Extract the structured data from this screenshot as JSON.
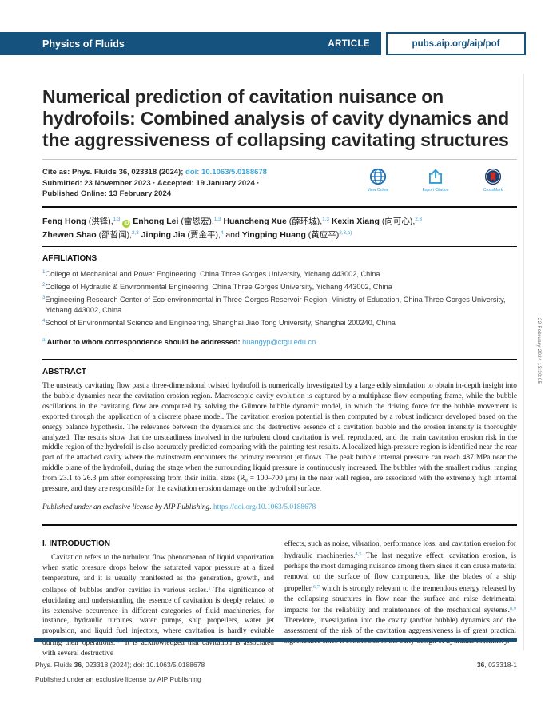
{
  "header": {
    "journal": "Physics of Fluids",
    "article_badge": "ARTICLE",
    "url": "pubs.aip.org/aip/pof"
  },
  "title": "Numerical prediction of cavitation nuisance on hydrofoils: Combined analysis of cavity dynamics and the aggressiveness of collapsing cavitating structures",
  "citation": {
    "line1": [
      {
        "t": "Cite as: Phys. Fluids "
      },
      {
        "t": "36",
        "c": "b"
      },
      {
        "t": ", 023318 (2024); "
      },
      {
        "t": "doi: 10.1063/5.0188678",
        "c": "link",
        "n": "doi-link",
        "i": true
      }
    ],
    "line2": "Submitted: 23 November 2023 · Accepted: 19 January 2024 ·",
    "line3": "Published Online: 13 February 2024"
  },
  "actions": {
    "view_online": "View Online",
    "export_citation": "Export Citation",
    "crossmark": "CrossMark"
  },
  "authors": {
    "line1": [
      {
        "t": "Feng Hong ",
        "c": "an"
      },
      {
        "t": "(洪锋),",
        "c": "cn"
      },
      {
        "t": "1,3",
        "c": "sup"
      },
      {
        "t": " ",
        "c": "cn"
      },
      {
        "t": "iD",
        "c": "orcid",
        "n": "orcid-icon",
        "i": true
      },
      {
        "t": " ",
        "c": "cn"
      },
      {
        "t": "Enhong Lei ",
        "c": "an"
      },
      {
        "t": "(雷恩宏),",
        "c": "cn"
      },
      {
        "t": "1,3",
        "c": "sup"
      },
      {
        "t": " ",
        "c": "cn"
      },
      {
        "t": "Huancheng Xue ",
        "c": "an"
      },
      {
        "t": "(薛环城),",
        "c": "cn"
      },
      {
        "t": "1,3",
        "c": "sup"
      },
      {
        "t": " ",
        "c": "cn"
      },
      {
        "t": "Kexin Xiang ",
        "c": "an"
      },
      {
        "t": "(向可心),",
        "c": "cn"
      },
      {
        "t": "2,3",
        "c": "sup"
      }
    ],
    "line2": [
      {
        "t": "Zhewen Shao ",
        "c": "an"
      },
      {
        "t": "(邵哲闻),",
        "c": "cn"
      },
      {
        "t": "2,3",
        "c": "sup"
      },
      {
        "t": " ",
        "c": "cn"
      },
      {
        "t": "Jinping Jia ",
        "c": "an"
      },
      {
        "t": "(贾金平),",
        "c": "cn"
      },
      {
        "t": "4",
        "c": "sup"
      },
      {
        "t": " and ",
        "c": "cn"
      },
      {
        "t": "Yingping Huang ",
        "c": "an"
      },
      {
        "t": "(黄应平)",
        "c": "cn"
      },
      {
        "t": "2,3,a)",
        "c": "sup"
      }
    ]
  },
  "affiliations": {
    "heading": "AFFILIATIONS",
    "items": [
      [
        {
          "t": "1",
          "c": "sup"
        },
        {
          "t": "College of Mechanical and Power Engineering, China Three Gorges University, Yichang 443002, China"
        }
      ],
      [
        {
          "t": "2",
          "c": "sup"
        },
        {
          "t": "College of Hydraulic & Environmental Engineering, China Three Gorges University, Yichang 443002, China"
        }
      ],
      [
        {
          "t": "3",
          "c": "sup"
        },
        {
          "t": "Engineering Research Center of Eco-environmental in Three Gorges Reservoir Region, Ministry of Education, China Three Gorges University, Yichang 443002, China"
        }
      ],
      [
        {
          "t": "4",
          "c": "sup"
        },
        {
          "t": "School of Environmental Science and Engineering, Shanghai Jiao Tong University, Shanghai 200240, China"
        }
      ]
    ],
    "correspondence": [
      {
        "t": "a)",
        "c": "sup"
      },
      {
        "t": "Author to whom correspondence should be addressed: ",
        "c": "b"
      },
      {
        "t": "huangyp@ctgu.edu.cn",
        "c": "link",
        "n": "correspondence-email-link",
        "i": true
      }
    ]
  },
  "abstract": {
    "heading": "ABSTRACT",
    "body": "The unsteady cavitating flow past a three-dimensional twisted hydrofoil is numerically investigated by a large eddy simulation to obtain in-depth insight into the bubble dynamics near the cavitation erosion region. Macroscopic cavity evolution is captured by a multiphase flow computing frame, while the bubble oscillations in the cavitating flow are computed by solving the Gilmore bubble dynamic model, in which the driving force for the bubble movement is exported through the application of a discrete phase model. The cavitation erosion potential is then computed by a robust indicator developed based on the energy balance hypothesis. The relevance between the dynamics and the destructive essence of a cavitation bubble and the erosion intensity is thoroughly analyzed. The results show that the unsteadiness involved in the turbulent cloud cavitation is well reproduced, and the main cavitation erosion risk in the middle region of the hydrofoil is also accurately predicted comparing with the painting test results. A localized high-pressure region is identified near the rear part of the attached cavity where the mainstream encounters the primary reentrant jet flows. The peak bubble internal pressure can reach 487 MPa near the middle plane of the hydrofoil, during the stage when the surrounding liquid pressure is continuously increased. The bubbles with the smallest radius, ranging from 23.1 to 26.3 μm after compressing from their initial sizes (R₀ = 100–700 μm) in the near wall region, are associated with the extremely high internal pressure, and they are responsible for the cavitation erosion damage on the hydrofoil surface.",
    "license": [
      {
        "t": "Published under an exclusive license by AIP Publishing. ",
        "c": "i"
      },
      {
        "t": "https://doi.org/10.1063/5.0188678",
        "c": "link",
        "n": "license-doi-link",
        "i": true
      }
    ]
  },
  "introduction": {
    "heading": "I. INTRODUCTION",
    "col_left": [
      {
        "t": "Cavitation refers to the turbulent flow phenomenon of liquid vaporization when static pressure drops below the saturated vapor pressure at a fixed temperature, and it is usually manifested as the generation, growth, and collapse of bubbles and/or cavities in various scales."
      },
      {
        "t": "1",
        "c": "supref"
      },
      {
        "t": " The significance of elucidating and understanding the essence of cavitation is deeply related to its extensive occurrence in different categories of fluid machineries, for instance, hydraulic turbines, water pumps, ship propellers, water jet propulsion, and liquid fuel injectors, where cavitation is hardly evitable during their operations."
      },
      {
        "t": "2,3",
        "c": "supref"
      },
      {
        "t": " It is acknowledged that cavitation is associated with several destructive"
      }
    ],
    "col_right": [
      {
        "t": "effects, such as noise, vibration, performance loss, and cavitation erosion for hydraulic machineries."
      },
      {
        "t": "4,5",
        "c": "supref"
      },
      {
        "t": " The last negative effect, cavitation erosion, is perhaps the most damaging nuisance among them since it can cause material removal on the surface of flow components, like the blades of a ship propeller,"
      },
      {
        "t": "6,7",
        "c": "supref"
      },
      {
        "t": " which is strongly relevant to the tremendous energy released by the collapsing structures in flow near the surface and raise detrimental impacts for the reliability and maintenance of the mechanical systems."
      },
      {
        "t": "8,9",
        "c": "supref"
      },
      {
        "t": " Therefore, investigation into the cavity (and/or bubble) dynamics and the assessment of the risk of the cavitation aggressiveness is of great practical significance since it contributes to the early design of hydraulic machinery."
      }
    ]
  },
  "footer": {
    "line1": [
      {
        "t": "Phys. Fluids "
      },
      {
        "t": "36",
        "c": "b"
      },
      {
        "t": ", 023318 (2024); doi: 10.1063/5.0188678"
      }
    ],
    "line2": "Published under an exclusive license by AIP Publishing",
    "page_ref": [
      {
        "t": "36",
        "c": "b"
      },
      {
        "t": ", 023318-1"
      }
    ]
  },
  "timestamp": "22 February 2024 13:30:05",
  "colors": {
    "header_blue": "#15537e",
    "link_blue": "#3fa5d6",
    "orcid_green": "#a6ce39",
    "crossmark_red": "#c62f2a"
  }
}
